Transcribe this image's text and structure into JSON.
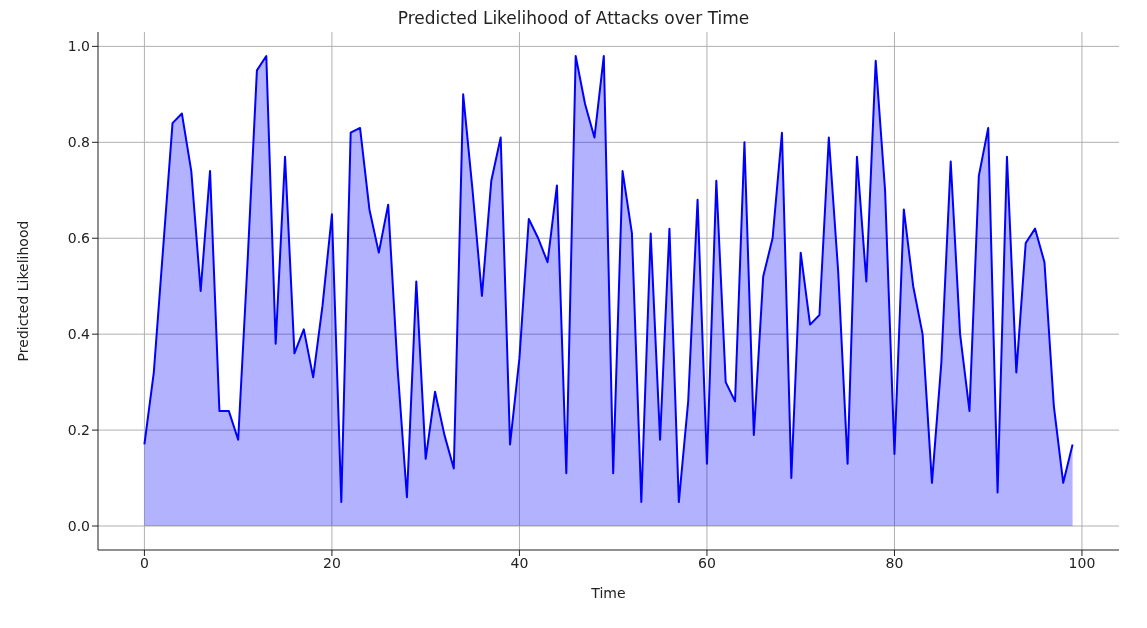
{
  "chart_data": {
    "type": "area",
    "title": "Predicted Likelihood of Attacks over Time",
    "xlabel": "Time",
    "ylabel": "Predicted Likelihood",
    "x": [
      0,
      1,
      2,
      3,
      4,
      5,
      6,
      7,
      8,
      9,
      10,
      11,
      12,
      13,
      14,
      15,
      16,
      17,
      18,
      19,
      20,
      21,
      22,
      23,
      24,
      25,
      26,
      27,
      28,
      29,
      30,
      31,
      32,
      33,
      34,
      35,
      36,
      37,
      38,
      39,
      40,
      41,
      42,
      43,
      44,
      45,
      46,
      47,
      48,
      49,
      50,
      51,
      52,
      53,
      54,
      55,
      56,
      57,
      58,
      59,
      60,
      61,
      62,
      63,
      64,
      65,
      66,
      67,
      68,
      69,
      70,
      71,
      72,
      73,
      74,
      75,
      76,
      77,
      78,
      79,
      80,
      81,
      82,
      83,
      84,
      85,
      86,
      87,
      88,
      89,
      90,
      91,
      92,
      93,
      94,
      95,
      96,
      97,
      98,
      99
    ],
    "series": [
      {
        "color": "#0000ff",
        "values": [
          0.17,
          0.32,
          0.58,
          0.84,
          0.86,
          0.74,
          0.49,
          0.74,
          0.24,
          0.24,
          0.18,
          0.55,
          0.95,
          0.98,
          0.38,
          0.77,
          0.36,
          0.41,
          0.31,
          0.46,
          0.65,
          0.05,
          0.82,
          0.83,
          0.66,
          0.57,
          0.67,
          0.33,
          0.06,
          0.51,
          0.14,
          0.28,
          0.19,
          0.12,
          0.9,
          0.7,
          0.48,
          0.72,
          0.81,
          0.17,
          0.35,
          0.64,
          0.6,
          0.55,
          0.71,
          0.11,
          0.98,
          0.88,
          0.81,
          0.98,
          0.11,
          0.74,
          0.61,
          0.05,
          0.61,
          0.18,
          0.62,
          0.05,
          0.26,
          0.68,
          0.13,
          0.72,
          0.3,
          0.26,
          0.8,
          0.19,
          0.52,
          0.6,
          0.82,
          0.1,
          0.57,
          0.42,
          0.44,
          0.81,
          0.53,
          0.13,
          0.77,
          0.51,
          0.97,
          0.7,
          0.15,
          0.66,
          0.5,
          0.4,
          0.09,
          0.34,
          0.76,
          0.4,
          0.24,
          0.73,
          0.83,
          0.07,
          0.77,
          0.32,
          0.59,
          0.62,
          0.55,
          0.25,
          0.09,
          0.17
        ]
      }
    ],
    "xlim": [
      -4.95,
      103.95
    ],
    "xticks": [
      0,
      20,
      40,
      60,
      80,
      100
    ],
    "ylim": [
      -0.05,
      1.03
    ],
    "yticks": [
      {
        "value": 0,
        "label": "0.0"
      },
      {
        "value": 0.2,
        "label": "0.2"
      },
      {
        "value": 0.4,
        "label": "0.4"
      },
      {
        "value": 0.6,
        "label": "0.6"
      },
      {
        "value": 0.8,
        "label": "0.8"
      },
      {
        "value": 1,
        "label": "1.0"
      }
    ],
    "grid": true,
    "legend": false
  }
}
